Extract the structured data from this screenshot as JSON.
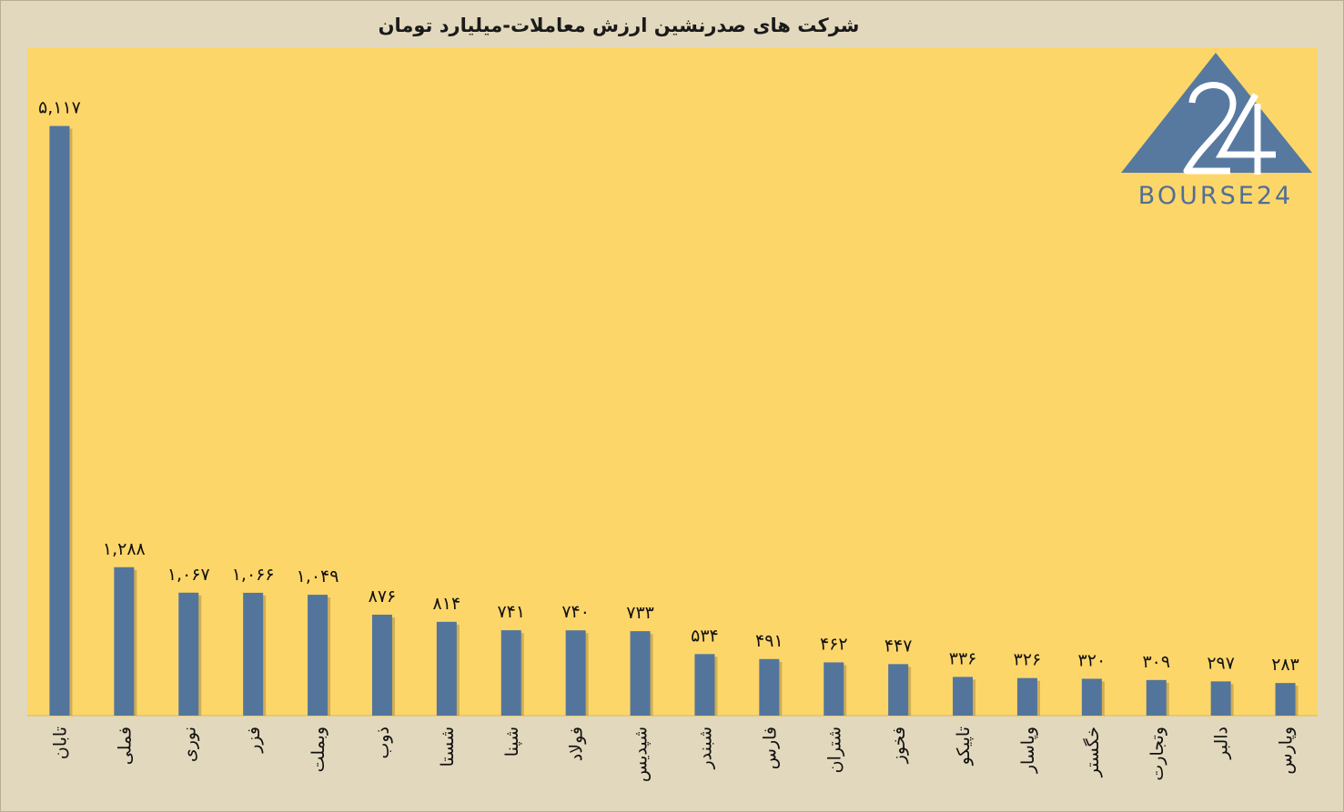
{
  "chart_data": {
    "type": "bar",
    "title": "شرکت های صدرنشین ارزش معاملات-میلیارد تومان",
    "categories": [
      "تابان",
      "فملی",
      "نوری",
      "فزر",
      "وبملت",
      "ذوب",
      "شستا",
      "شپنا",
      "فولاد",
      "شپدیس",
      "شبندر",
      "فارس",
      "شتران",
      "فخوز",
      "تاپیکو",
      "وپاسار",
      "خگستر",
      "وتجارت",
      "دالبر",
      "وپارس"
    ],
    "values": [
      5117,
      1288,
      1067,
      1066,
      1049,
      876,
      814,
      741,
      740,
      733,
      534,
      491,
      462,
      447,
      336,
      326,
      320,
      309,
      297,
      283
    ],
    "value_labels": [
      "۵,۱۱۷",
      "۱,۲۸۸",
      "۱,۰۶۷",
      "۱,۰۶۶",
      "۱,۰۴۹",
      "۸۷۶",
      "۸۱۴",
      "۷۴۱",
      "۷۴۰",
      "۷۳۳",
      "۵۳۴",
      "۴۹۱",
      "۴۶۲",
      "۴۴۷",
      "۳۳۶",
      "۳۲۶",
      "۳۲۰",
      "۳۰۹",
      "۲۹۷",
      "۲۸۳"
    ],
    "ylim": [
      0,
      5800
    ],
    "grid": false,
    "legend": "none",
    "colors": {
      "bar": "#53759c",
      "plot_background": "#fdd66a",
      "page_background": "#e2d8bd"
    }
  },
  "logo": {
    "text": "BOURSE24",
    "color": "#4f6f96"
  }
}
